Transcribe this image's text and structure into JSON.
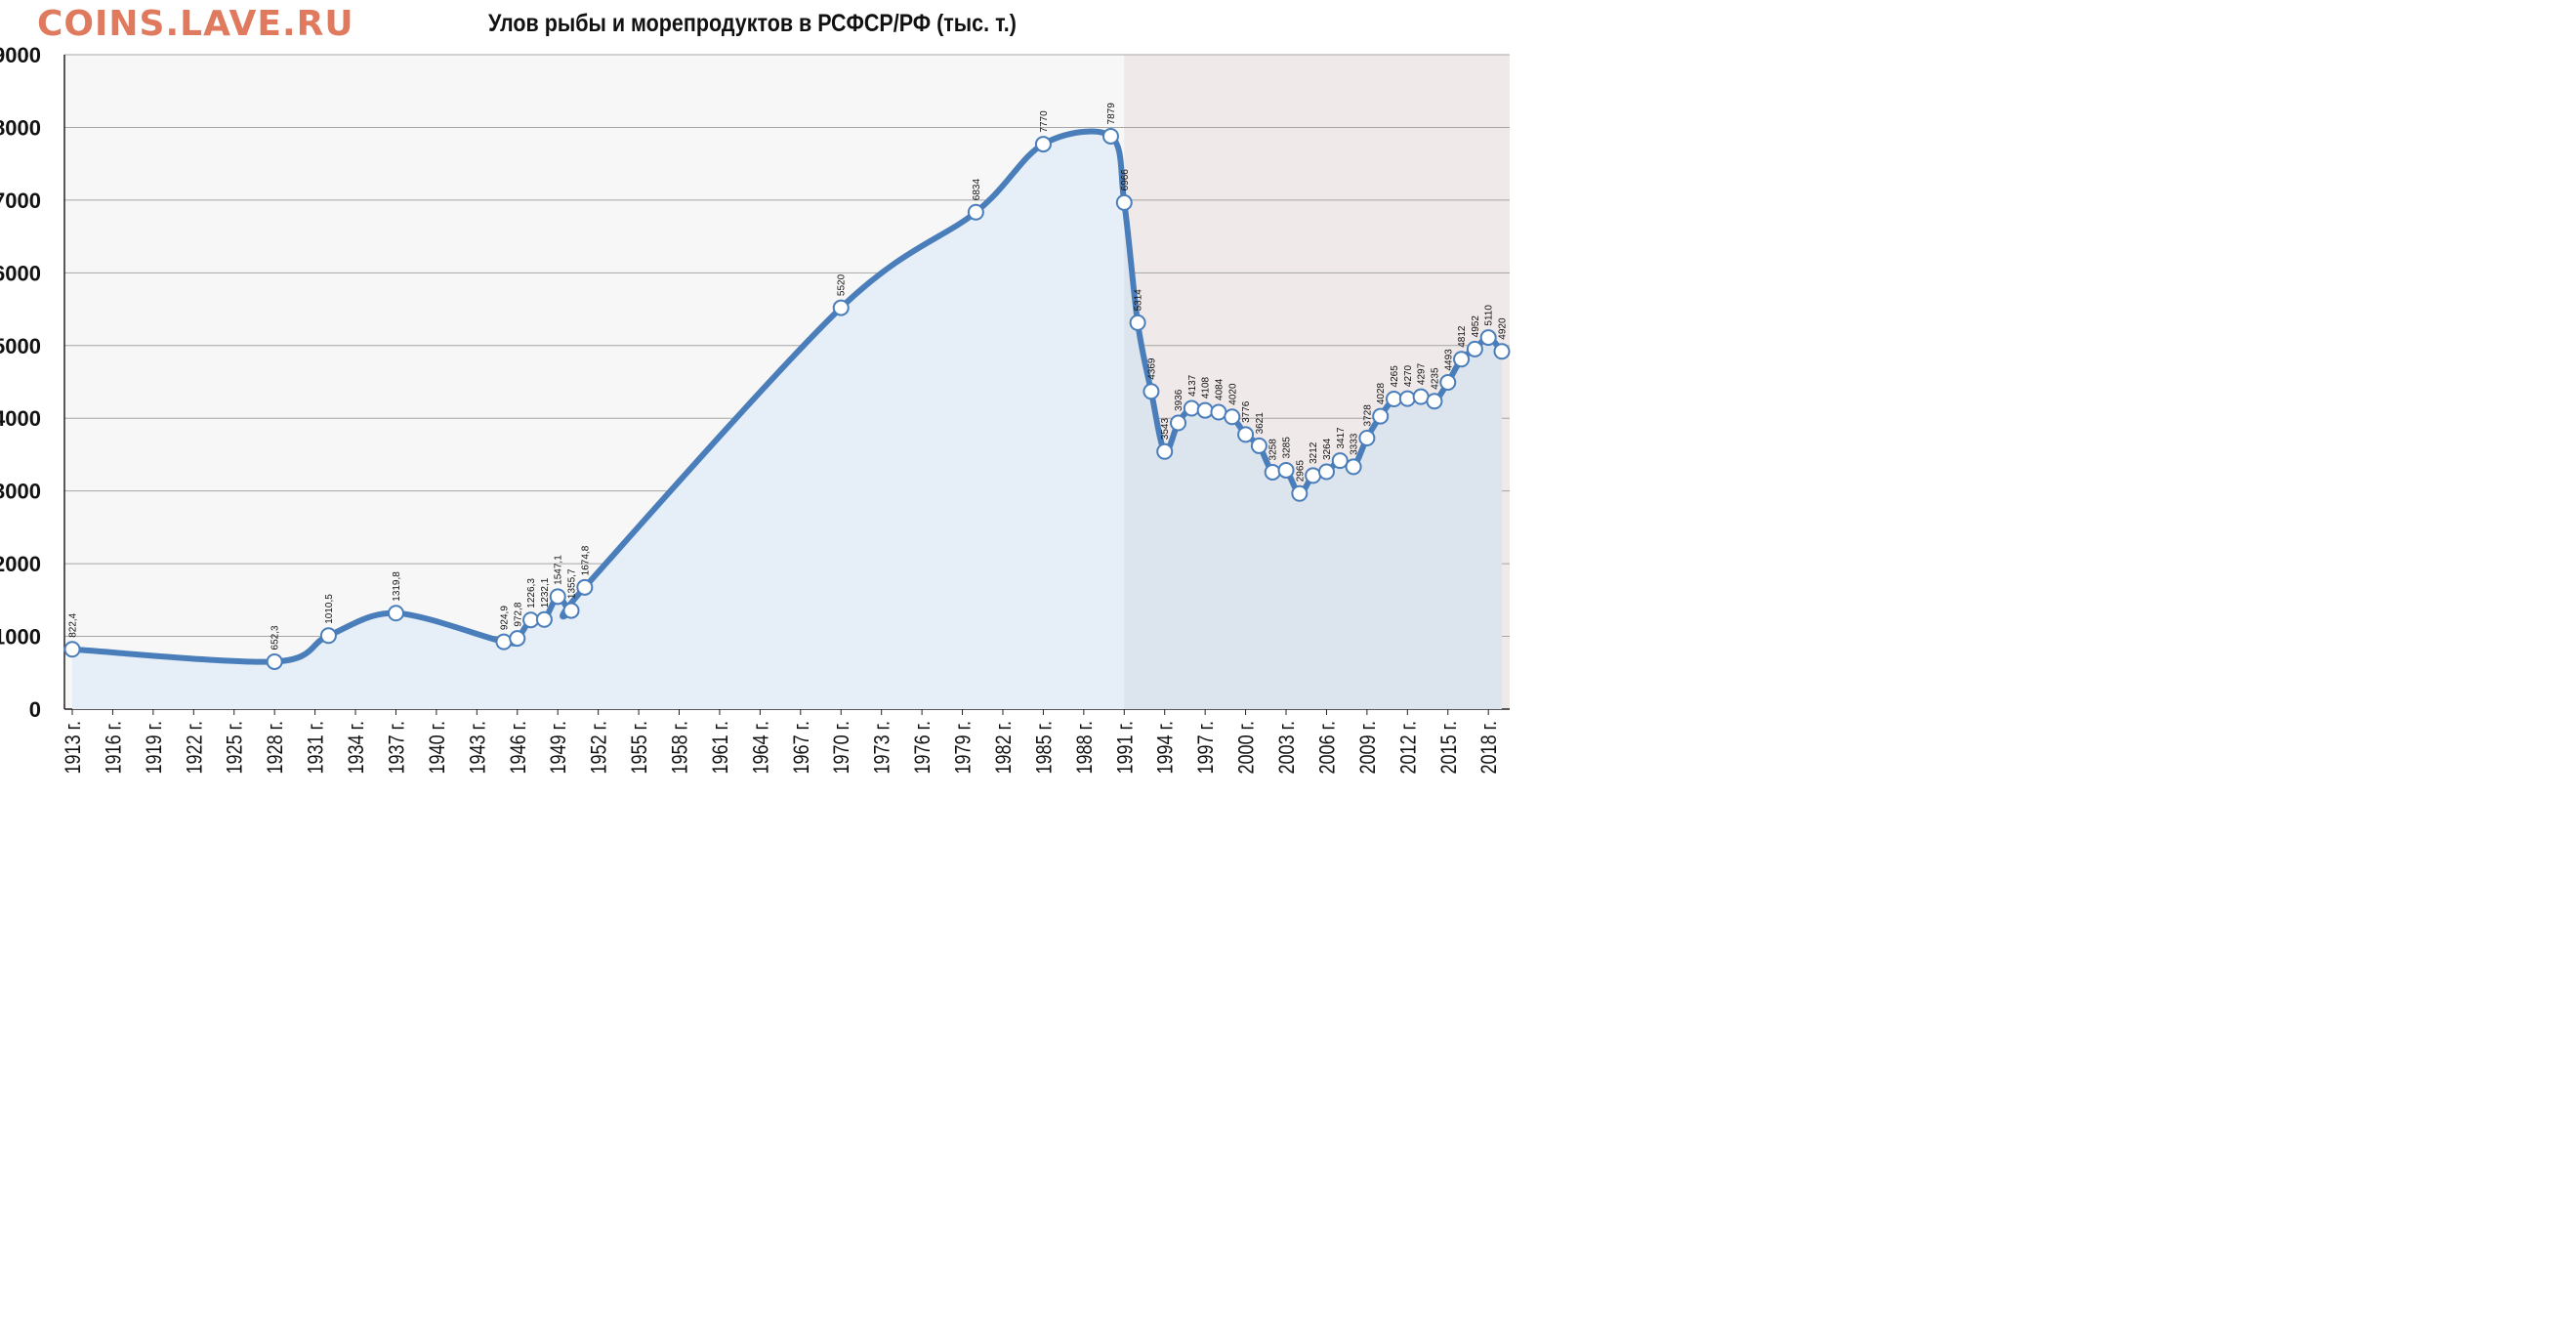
{
  "brand": "COINS.LAVE.RU",
  "chart_data": {
    "type": "area",
    "title": "Улов рыбы и морепродуктов в РСФСР/РФ (тыс. т.)",
    "xlabel": "",
    "ylabel": "",
    "ylim": [
      0,
      9000
    ],
    "xlim": [
      1913,
      2019
    ],
    "yticks": [
      0,
      1000,
      2000,
      3000,
      4000,
      5000,
      6000,
      7000,
      8000,
      9000
    ],
    "xtick_years": [
      1913,
      1916,
      1919,
      1922,
      1925,
      1928,
      1931,
      1934,
      1937,
      1940,
      1943,
      1946,
      1949,
      1952,
      1955,
      1958,
      1961,
      1964,
      1967,
      1970,
      1973,
      1976,
      1979,
      1982,
      1985,
      1988,
      1991,
      1994,
      1997,
      2000,
      2003,
      2006,
      2009,
      2012,
      2015,
      2018
    ],
    "xtick_labels": [
      "1913 г.",
      "1916 г.",
      "1919 г.",
      "1922 г.",
      "1925 г.",
      "1928 г.",
      "1931 г.",
      "1934 г.",
      "1937 г.",
      "1940 г.",
      "1943 г.",
      "1946 г.",
      "1949 г.",
      "1952 г.",
      "1955 г.",
      "1958 г.",
      "1961 г.",
      "1964 г.",
      "1967 г.",
      "1970 г.",
      "1973 г.",
      "1976 г.",
      "1979 г.",
      "1982 г.",
      "1985 г.",
      "1988 г.",
      "1991 г.",
      "1994 г.",
      "1997 г.",
      "2000 г.",
      "2003 г.",
      "2006 г.",
      "2009 г.",
      "2012 г.",
      "2015 г.",
      "2018 г."
    ],
    "grid": true,
    "shaded_region": [
      1991,
      2019
    ],
    "series": [
      {
        "points": [
          {
            "x": 1913,
            "y": 822.4,
            "label": "822,4"
          },
          {
            "x": 1928,
            "y": 652.3,
            "label": "652,3"
          },
          {
            "x": 1932,
            "y": 1010.5,
            "label": "1010,5"
          },
          {
            "x": 1937,
            "y": 1319.8,
            "label": "1319,8"
          },
          {
            "x": 1945,
            "y": 924.9,
            "label": "924,9"
          },
          {
            "x": 1946,
            "y": 972.8,
            "label": "972,8"
          },
          {
            "x": 1947,
            "y": 1226.3,
            "label": "1226,3"
          },
          {
            "x": 1948,
            "y": 1232.1,
            "label": "1232,1"
          },
          {
            "x": 1949,
            "y": 1547.1,
            "label": "1547,1"
          },
          {
            "x": 1950,
            "y": 1355.7,
            "label": "1355,7"
          },
          {
            "x": 1951,
            "y": 1674.8,
            "label": "1674,8"
          },
          {
            "x": 1970,
            "y": 5520,
            "label": "5520"
          },
          {
            "x": 1980,
            "y": 6834,
            "label": "6834"
          },
          {
            "x": 1985,
            "y": 7770,
            "label": "7770"
          },
          {
            "x": 1990,
            "y": 7879,
            "label": "7879"
          },
          {
            "x": 1991,
            "y": 6966,
            "label": "6966"
          },
          {
            "x": 1992,
            "y": 5314,
            "label": "5314"
          },
          {
            "x": 1993,
            "y": 4369,
            "label": "4369"
          },
          {
            "x": 1994,
            "y": 3543,
            "label": "3543"
          },
          {
            "x": 1995,
            "y": 3936,
            "label": "3936"
          },
          {
            "x": 1996,
            "y": 4137,
            "label": "4137"
          },
          {
            "x": 1997,
            "y": 4108,
            "label": "4108"
          },
          {
            "x": 1998,
            "y": 4084,
            "label": "4084"
          },
          {
            "x": 1999,
            "y": 4020,
            "label": "4020"
          },
          {
            "x": 2000,
            "y": 3776,
            "label": "3776"
          },
          {
            "x": 2001,
            "y": 3621,
            "label": "3621"
          },
          {
            "x": 2002,
            "y": 3258,
            "label": "3258"
          },
          {
            "x": 2003,
            "y": 3285,
            "label": "3285"
          },
          {
            "x": 2004,
            "y": 2965,
            "label": "2965"
          },
          {
            "x": 2005,
            "y": 3212,
            "label": "3212"
          },
          {
            "x": 2006,
            "y": 3264,
            "label": "3264"
          },
          {
            "x": 2007,
            "y": 3417,
            "label": "3417"
          },
          {
            "x": 2008,
            "y": 3333,
            "label": "3333"
          },
          {
            "x": 2009,
            "y": 3728,
            "label": "3728"
          },
          {
            "x": 2010,
            "y": 4028,
            "label": "4028"
          },
          {
            "x": 2011,
            "y": 4265,
            "label": "4265"
          },
          {
            "x": 2012,
            "y": 4270,
            "label": "4270"
          },
          {
            "x": 2013,
            "y": 4297,
            "label": "4297"
          },
          {
            "x": 2014,
            "y": 4235,
            "label": "4235"
          },
          {
            "x": 2015,
            "y": 4493,
            "label": "4493"
          },
          {
            "x": 2016,
            "y": 4812,
            "label": "4812"
          },
          {
            "x": 2017,
            "y": 4952,
            "label": "4952"
          },
          {
            "x": 2018,
            "y": 5110,
            "label": "5110"
          },
          {
            "x": 2019,
            "y": 4920,
            "label": "4920"
          }
        ]
      }
    ]
  },
  "colors": {
    "line": "#4a7ebb",
    "area_fill": "#e6eef8",
    "plot_bg": "#f7f7f7",
    "shaded_bg": "#efe9e9",
    "shaded_area_fill": "#dce4ee",
    "grid": "#a6a6a6",
    "marker_fill": "#ffffff",
    "brand": "#e07a5f"
  }
}
